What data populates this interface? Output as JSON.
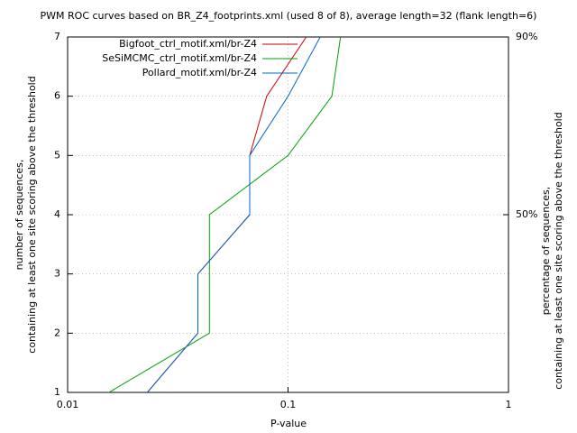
{
  "chart_data": {
    "type": "line",
    "title": "PWM ROC curves based on BR_Z4_footprints.xml (used 8 of 8), average length=32 (flank length=6)",
    "xlabel": "P-value",
    "ylabel": [
      "number of sequences,",
      "containing at least one site scoring above the threshold"
    ],
    "y2label": [
      "percentage of sequences,",
      "containing at least one site scoring above the threshold"
    ],
    "xscale": "log",
    "xlim": [
      0.01,
      1
    ],
    "xticks": [
      0.01,
      0.1,
      1
    ],
    "ylim": [
      1,
      7
    ],
    "yticks": [
      1,
      2,
      3,
      4,
      5,
      6,
      7
    ],
    "y2lim": [
      10,
      90
    ],
    "y2ticks": [
      {
        "value": 50,
        "label": "50%"
      },
      {
        "value": 90,
        "label": "90%"
      }
    ],
    "grid": true,
    "legend": "top-left",
    "series": [
      {
        "name": "Bigfoot_ctrl_motif.xml/br-Z4",
        "color": "#cc0000",
        "x": [
          0.023,
          0.039,
          0.039,
          0.067,
          0.067,
          0.08,
          0.121
        ],
        "values": [
          1,
          2,
          3,
          4,
          5,
          6,
          7
        ]
      },
      {
        "name": "SeSiMCMC_ctrl_motif.xml/br-Z4",
        "color": "#00a000",
        "x": [
          0.0154,
          0.044,
          0.044,
          0.044,
          0.1,
          0.158,
          0.173
        ],
        "values": [
          1,
          2,
          3,
          4,
          5,
          6,
          7
        ]
      },
      {
        "name": "Pollard_motif.xml/br-Z4",
        "color": "#0066cc",
        "x": [
          0.023,
          0.039,
          0.039,
          0.067,
          0.067,
          0.1,
          0.14
        ],
        "values": [
          1,
          2,
          3,
          4,
          5,
          6,
          7
        ]
      }
    ]
  }
}
